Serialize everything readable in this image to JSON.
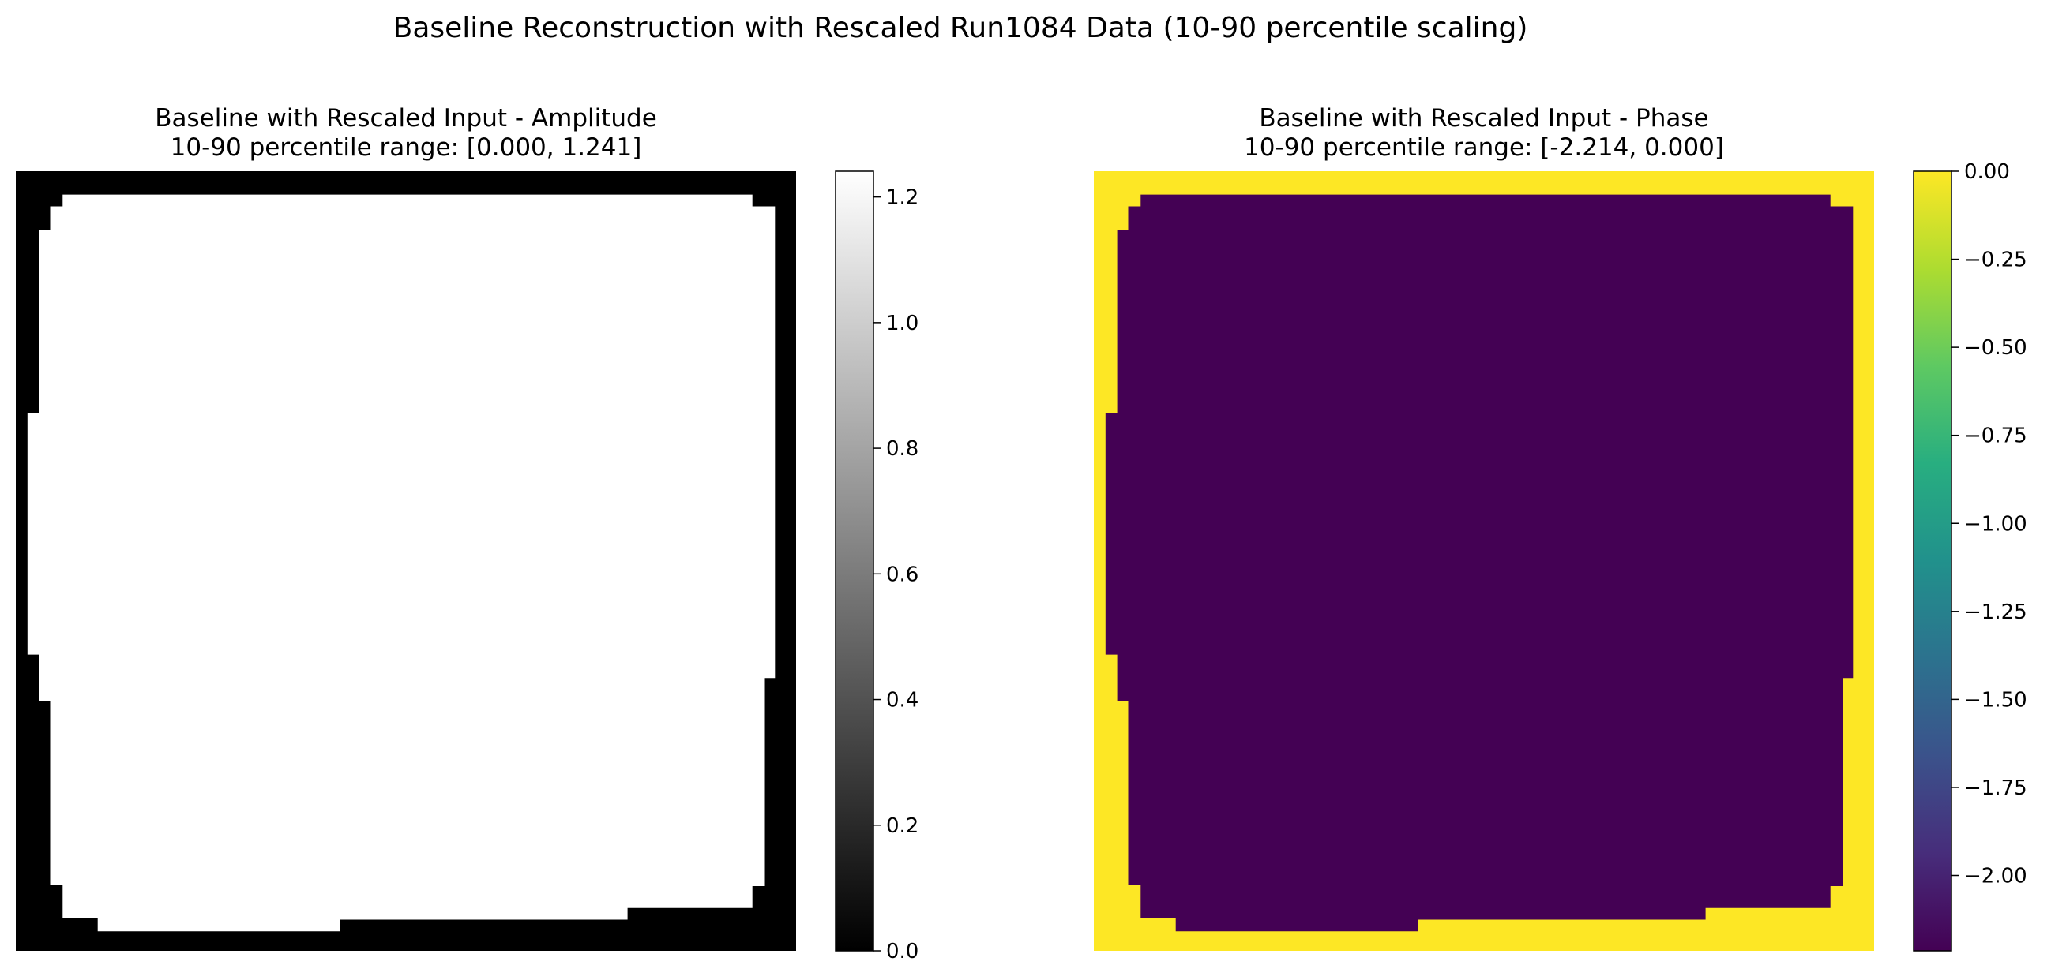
{
  "figure": {
    "suptitle": "Baseline Reconstruction with Rescaled Run1084 Data (10-90 percentile scaling)"
  },
  "colors": {
    "gray_low": "#000000",
    "gray_high": "#ffffff",
    "viridis_low": "#440154",
    "viridis_high": "#fde725",
    "background": "#ffffff"
  },
  "chart_data": [
    {
      "type": "heatmap",
      "title_line1": "Baseline with Rescaled Input - Amplitude",
      "title_line2": "10-90 percentile range: [0.000, 1.241]",
      "colormap": "gray",
      "vmin": 0.0,
      "vmax": 1.241,
      "inside_value": 1.241,
      "border_value": 0.0,
      "axes_visible": false,
      "grid": false,
      "colorbar": {
        "ticks": [
          0.0,
          0.2,
          0.4,
          0.6,
          0.8,
          1.0,
          1.2
        ],
        "tick_labels": [
          "0.0",
          "0.2",
          "0.4",
          "0.6",
          "0.8",
          "1.0",
          "1.2"
        ]
      }
    },
    {
      "type": "heatmap",
      "title_line1": "Baseline with Rescaled Input - Phase",
      "title_line2": "10-90 percentile range: [-2.214, 0.000]",
      "colormap": "viridis",
      "vmin": -2.214,
      "vmax": 0.0,
      "inside_value": -2.214,
      "border_value": 0.0,
      "axes_visible": false,
      "grid": false,
      "colorbar": {
        "ticks": [
          0.0,
          -0.25,
          -0.5,
          -0.75,
          -1.0,
          -1.25,
          -1.5,
          -1.75,
          -2.0
        ],
        "tick_labels": [
          "0.00",
          "−0.25",
          "−0.50",
          "−0.75",
          "−1.00",
          "−1.25",
          "−1.50",
          "−1.75",
          "−2.00"
        ]
      }
    }
  ]
}
